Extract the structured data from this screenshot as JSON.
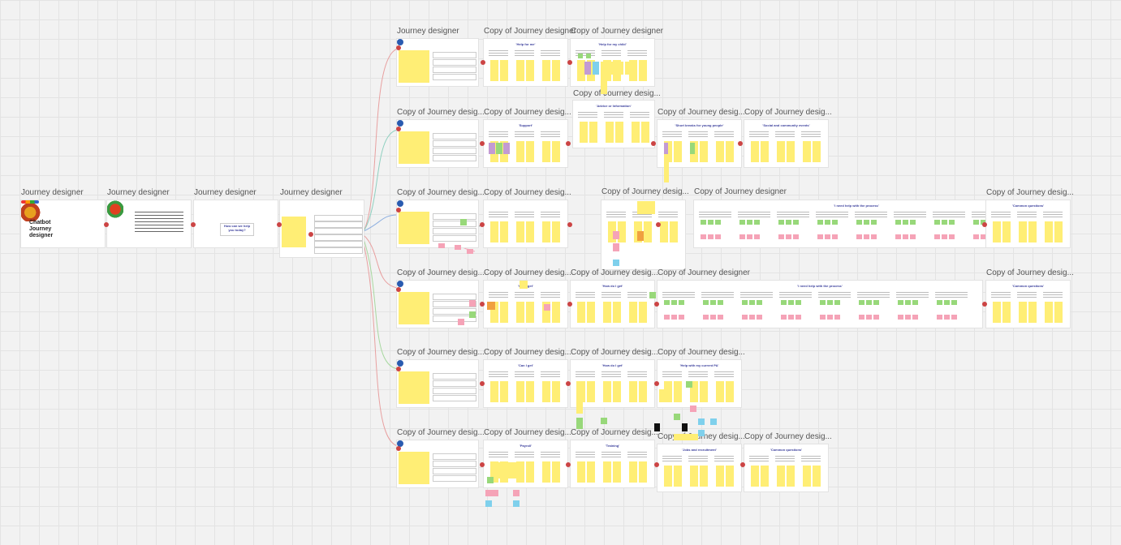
{
  "board": {
    "frames": [
      {
        "id": "f1",
        "title": "Journey designer"
      },
      {
        "id": "f2",
        "title": "Journey designer"
      },
      {
        "id": "f3",
        "title": "Journey designer"
      },
      {
        "id": "f4",
        "title": "Journey designer"
      },
      {
        "id": "r1a",
        "title": "Journey designer"
      },
      {
        "id": "r1b",
        "title": "Copy of Journey designer"
      },
      {
        "id": "r1c",
        "title": "Copy of Journey designer"
      },
      {
        "id": "r2mid",
        "title": "Copy of Journey desig..."
      },
      {
        "id": "r2a",
        "title": "Copy of Journey desig..."
      },
      {
        "id": "r2b",
        "title": "Copy of Journey desig..."
      },
      {
        "id": "r2d",
        "title": "Copy of Journey desig..."
      },
      {
        "id": "r2e",
        "title": "Copy of Journey desig..."
      },
      {
        "id": "r3a",
        "title": "Copy of Journey desig..."
      },
      {
        "id": "r3b",
        "title": "Copy of Journey desig..."
      },
      {
        "id": "r3c",
        "title": "Copy of Journey desig..."
      },
      {
        "id": "r3d",
        "title": "Copy of Journey designer"
      },
      {
        "id": "r3e",
        "title": "Copy of Journey desig..."
      },
      {
        "id": "r4a",
        "title": "Copy of Journey desig..."
      },
      {
        "id": "r4b",
        "title": "Copy of Journey desig..."
      },
      {
        "id": "r4c",
        "title": "Copy of Journey desig..."
      },
      {
        "id": "r4d",
        "title": "Copy of Journey designer"
      },
      {
        "id": "r4e",
        "title": "Copy of Journey desig..."
      },
      {
        "id": "r5a",
        "title": "Copy of Journey desig..."
      },
      {
        "id": "r5b",
        "title": "Copy of Journey desig..."
      },
      {
        "id": "r5c",
        "title": "Copy of Journey desig..."
      },
      {
        "id": "r5d",
        "title": "Copy of Journey desig..."
      },
      {
        "id": "r6a",
        "title": "Copy of Journey desig..."
      },
      {
        "id": "r6b",
        "title": "Copy of Journey desig..."
      },
      {
        "id": "r6c",
        "title": "Copy of Journey desig..."
      },
      {
        "id": "r6d",
        "title": "Copy of Journey desig..."
      },
      {
        "id": "r6e",
        "title": "Copy of Journey desig..."
      }
    ],
    "intro": {
      "title": "Chatbot Journey designer",
      "subtitle": "How can we help you today?"
    },
    "headers": {
      "r1b": "'Help for me'",
      "r1c": "'Help for my child'",
      "r2mid": "'Advice or Information'",
      "r2b": "'Support'",
      "r2d": "'Short breaks for young people'",
      "r2e": "'Social and community events'",
      "r3d": "'I need help with the process'",
      "r3e": "'Common questions'",
      "r4b": "'Can I get'",
      "r4c": "'How do I get'",
      "r4d": "'I need help with the process'",
      "r4e": "'Common questions'",
      "r5b": "'Can I get'",
      "r5c": "'How do I get'",
      "r5d": "'Help with my current PA'",
      "r6b": "'Payroll'",
      "r6c": "'Training'",
      "r6d": "'Jobs and recruitment'",
      "r6e": "'Common questions'"
    }
  }
}
